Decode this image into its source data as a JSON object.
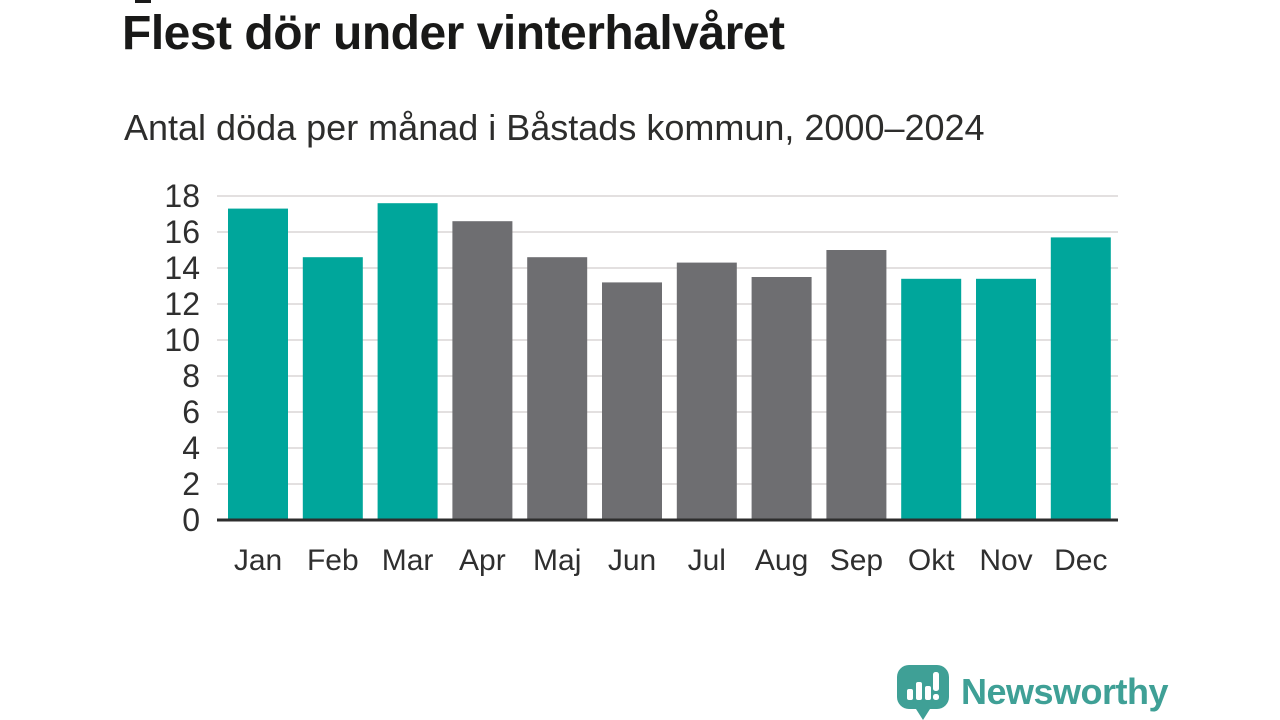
{
  "header": {
    "title": "Flest dör under vinterhalvåret",
    "subtitle": "Antal döda per månad i Båstads kommun, 2000–2024"
  },
  "chart_data": {
    "type": "bar",
    "title": "Flest dör under vinterhalvåret",
    "subtitle": "Antal döda per månad i Båstads kommun, 2000–2024",
    "categories": [
      "Jan",
      "Feb",
      "Mar",
      "Apr",
      "Maj",
      "Jun",
      "Jul",
      "Aug",
      "Sep",
      "Okt",
      "Nov",
      "Dec"
    ],
    "values": [
      17.3,
      14.6,
      17.6,
      16.6,
      14.6,
      13.2,
      14.3,
      13.5,
      15.0,
      13.4,
      13.4,
      15.7
    ],
    "bar_roles": [
      "highlight",
      "highlight",
      "highlight",
      "base",
      "base",
      "base",
      "base",
      "base",
      "base",
      "highlight",
      "highlight",
      "highlight"
    ],
    "bar_palette": {
      "highlight": "#00a69b",
      "base": "#6e6e71"
    },
    "xlabel": "",
    "ylabel": "",
    "ylim": [
      0,
      18
    ],
    "yticks": [
      0,
      2,
      4,
      6,
      8,
      10,
      12,
      14,
      16,
      18
    ],
    "grid": "horizontal",
    "legend": "none"
  },
  "footer": {
    "brand": "Newsworthy",
    "logo_icon": "speech-bubble-bar-chart-icon"
  },
  "colors": {
    "highlight_bar": "#00a69b",
    "base_bar": "#6e6e71",
    "grid": "#e3e0e0",
    "axis": "#2d2d2d",
    "tick_label": "#2f2f2f",
    "title": "#191918",
    "subtitle": "#2d2d2c",
    "brand": "#3fa096",
    "background": "#ffffff"
  }
}
